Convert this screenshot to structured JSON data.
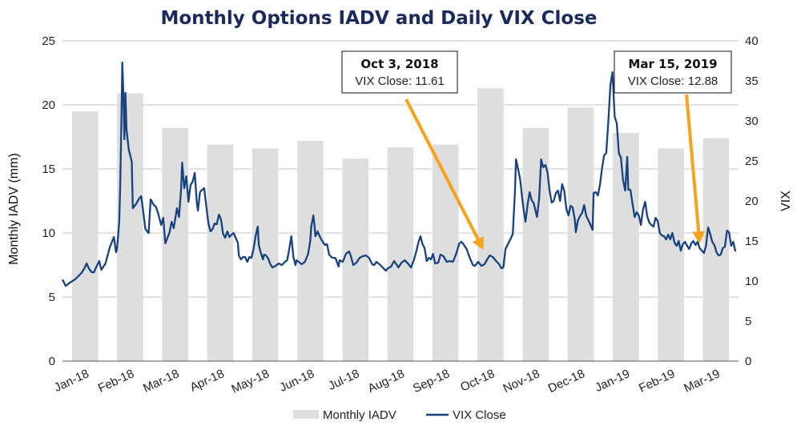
{
  "chart_data": {
    "type": "bar+line",
    "title": "Monthly Options IADV and Daily VIX Close",
    "categories": [
      "Jan-18",
      "Feb-18",
      "Mar-18",
      "Apr-18",
      "May-18",
      "Jun-18",
      "Jul-18",
      "Aug-18",
      "Sep-18",
      "Oct-18",
      "Nov-18",
      "Dec-18",
      "Jan-19",
      "Feb-19",
      "Mar-19"
    ],
    "bar_series": {
      "name": "Monthly IADV",
      "values": [
        19.5,
        20.9,
        18.2,
        16.9,
        16.6,
        17.2,
        15.8,
        16.7,
        16.9,
        21.3,
        18.2,
        19.8,
        17.8,
        16.6,
        17.4
      ]
    },
    "line_series": {
      "name": "VIX Close",
      "points": [
        [
          0.0,
          10.2
        ],
        [
          0.15,
          9.4
        ],
        [
          0.35,
          9.8
        ],
        [
          0.6,
          10.2
        ],
        [
          0.9,
          11.0
        ],
        [
          1.05,
          11.6
        ],
        [
          1.15,
          12.2
        ],
        [
          1.25,
          11.6
        ],
        [
          1.3,
          11.4
        ],
        [
          1.4,
          11.1
        ],
        [
          1.5,
          11.1
        ],
        [
          1.6,
          11.7
        ],
        [
          1.75,
          12.5
        ],
        [
          1.85,
          11.4
        ],
        [
          1.95,
          11.8
        ],
        [
          2.05,
          12.2
        ],
        [
          2.25,
          14.2
        ],
        [
          2.45,
          15.5
        ],
        [
          2.55,
          13.6
        ],
        [
          2.6,
          14.0
        ],
        [
          2.7,
          17.3
        ],
        [
          2.75,
          22.0
        ],
        [
          2.8,
          29.0
        ],
        [
          2.85,
          37.3
        ],
        [
          2.9,
          33.5
        ],
        [
          2.95,
          27.7
        ],
        [
          3.0,
          33.5
        ],
        [
          3.05,
          29.0
        ],
        [
          3.15,
          26.5
        ],
        [
          3.3,
          24.9
        ],
        [
          3.35,
          19.1
        ],
        [
          3.5,
          19.6
        ],
        [
          3.65,
          20.3
        ],
        [
          3.75,
          20.6
        ],
        [
          3.85,
          18.6
        ],
        [
          3.95,
          16.5
        ],
        [
          4.1,
          16.0
        ],
        [
          4.2,
          20.2
        ],
        [
          4.35,
          19.5
        ],
        [
          4.45,
          19.3
        ],
        [
          4.55,
          18.5
        ],
        [
          4.7,
          17.0
        ],
        [
          4.8,
          17.9
        ],
        [
          4.9,
          14.7
        ],
        [
          5.0,
          15.4
        ],
        [
          5.1,
          16.1
        ],
        [
          5.2,
          17.4
        ],
        [
          5.3,
          16.6
        ],
        [
          5.45,
          19.1
        ],
        [
          5.55,
          18.0
        ],
        [
          5.65,
          21.5
        ],
        [
          5.7,
          24.8
        ],
        [
          5.8,
          21.6
        ],
        [
          5.9,
          23.1
        ],
        [
          6.0,
          19.9
        ],
        [
          6.1,
          22.0
        ],
        [
          6.2,
          22.4
        ],
        [
          6.3,
          23.5
        ],
        [
          6.4,
          19.7
        ],
        [
          6.45,
          18.8
        ],
        [
          6.55,
          21.1
        ],
        [
          6.65,
          21.4
        ],
        [
          6.75,
          21.6
        ],
        [
          6.85,
          19.4
        ],
        [
          6.95,
          17.2
        ],
        [
          7.05,
          16.2
        ],
        [
          7.15,
          16.5
        ],
        [
          7.25,
          17.2
        ],
        [
          7.35,
          17.1
        ],
        [
          7.45,
          18.3
        ],
        [
          7.55,
          17.7
        ],
        [
          7.65,
          15.9
        ],
        [
          7.75,
          15.4
        ],
        [
          7.85,
          16.2
        ],
        [
          7.95,
          15.5
        ],
        [
          8.05,
          15.8
        ],
        [
          8.15,
          16.0
        ],
        [
          8.25,
          15.4
        ],
        [
          8.35,
          14.8
        ],
        [
          8.4,
          13.2
        ],
        [
          8.5,
          12.7
        ],
        [
          8.6,
          13.0
        ],
        [
          8.7,
          13.0
        ],
        [
          8.8,
          12.4
        ],
        [
          8.9,
          13.0
        ],
        [
          9.0,
          12.9
        ],
        [
          9.1,
          14.0
        ],
        [
          9.2,
          15.6
        ],
        [
          9.3,
          16.8
        ],
        [
          9.35,
          14.5
        ],
        [
          9.45,
          13.5
        ],
        [
          9.55,
          12.7
        ],
        [
          9.6,
          13.3
        ],
        [
          9.7,
          13.2
        ],
        [
          9.8,
          12.8
        ],
        [
          9.9,
          12.1
        ],
        [
          10.0,
          11.7
        ],
        [
          10.15,
          11.9
        ],
        [
          10.3,
          12.2
        ],
        [
          10.45,
          12.0
        ],
        [
          10.6,
          12.4
        ],
        [
          10.7,
          12.6
        ],
        [
          10.8,
          14.0
        ],
        [
          10.9,
          15.6
        ],
        [
          11.0,
          13.0
        ],
        [
          11.1,
          12.0
        ],
        [
          11.15,
          12.6
        ],
        [
          11.25,
          12.4
        ],
        [
          11.4,
          12.1
        ],
        [
          11.55,
          12.4
        ],
        [
          11.7,
          13.4
        ],
        [
          11.8,
          15.0
        ],
        [
          11.85,
          16.8
        ],
        [
          11.95,
          18.2
        ],
        [
          12.0,
          17.1
        ],
        [
          12.05,
          15.6
        ],
        [
          12.15,
          16.2
        ],
        [
          12.25,
          15.6
        ],
        [
          12.35,
          15.1
        ],
        [
          12.5,
          14.5
        ],
        [
          12.6,
          14.6
        ],
        [
          12.7,
          13.3
        ],
        [
          12.85,
          12.9
        ],
        [
          13.0,
          12.9
        ],
        [
          13.15,
          11.8
        ],
        [
          13.2,
          12.6
        ],
        [
          13.35,
          12.4
        ],
        [
          13.5,
          13.4
        ],
        [
          13.65,
          13.7
        ],
        [
          13.75,
          13.0
        ],
        [
          13.85,
          12.0
        ],
        [
          14.0,
          12.3
        ],
        [
          14.15,
          12.9
        ],
        [
          14.3,
          13.1
        ],
        [
          14.45,
          13.2
        ],
        [
          14.6,
          12.9
        ],
        [
          14.75,
          12.1
        ],
        [
          14.85,
          12.0
        ],
        [
          14.95,
          12.4
        ],
        [
          15.1,
          12.1
        ],
        [
          15.25,
          11.7
        ],
        [
          15.4,
          11.3
        ],
        [
          15.5,
          11.6
        ],
        [
          15.65,
          11.8
        ],
        [
          15.8,
          12.5
        ],
        [
          15.9,
          12.1
        ],
        [
          16.0,
          11.7
        ],
        [
          16.15,
          12.3
        ],
        [
          16.3,
          12.6
        ],
        [
          16.45,
          12.2
        ],
        [
          16.6,
          11.7
        ],
        [
          16.75,
          12.7
        ],
        [
          16.85,
          13.7
        ],
        [
          16.95,
          14.8
        ],
        [
          17.05,
          15.6
        ],
        [
          17.15,
          14.6
        ],
        [
          17.25,
          14.1
        ],
        [
          17.35,
          12.5
        ],
        [
          17.45,
          12.9
        ],
        [
          17.55,
          12.7
        ],
        [
          17.65,
          13.4
        ],
        [
          17.75,
          12.2
        ],
        [
          17.9,
          12.3
        ],
        [
          18.0,
          13.3
        ],
        [
          18.15,
          13.1
        ],
        [
          18.3,
          12.4
        ],
        [
          18.45,
          12.5
        ],
        [
          18.6,
          12.4
        ],
        [
          18.75,
          13.4
        ],
        [
          18.9,
          14.7
        ],
        [
          19.0,
          14.9
        ],
        [
          19.1,
          14.6
        ],
        [
          19.25,
          14.0
        ],
        [
          19.4,
          12.9
        ],
        [
          19.55,
          12.0
        ],
        [
          19.65,
          11.9
        ],
        [
          19.8,
          12.4
        ],
        [
          19.95,
          11.9
        ],
        [
          20.1,
          12.1
        ],
        [
          20.25,
          12.8
        ],
        [
          20.35,
          13.2
        ],
        [
          20.5,
          13.0
        ],
        [
          20.65,
          12.5
        ],
        [
          20.8,
          12.1
        ],
        [
          20.9,
          11.6
        ],
        [
          21.0,
          11.7
        ],
        [
          21.1,
          14.0
        ],
        [
          21.25,
          14.8
        ],
        [
          21.35,
          15.3
        ],
        [
          21.45,
          15.9
        ],
        [
          21.55,
          21.2
        ],
        [
          21.6,
          25.2
        ],
        [
          21.7,
          24.0
        ],
        [
          21.8,
          22.7
        ],
        [
          21.9,
          20.3
        ],
        [
          22.0,
          18.3
        ],
        [
          22.05,
          17.4
        ],
        [
          22.15,
          19.5
        ],
        [
          22.25,
          21.1
        ],
        [
          22.35,
          20.1
        ],
        [
          22.45,
          19.7
        ],
        [
          22.6,
          18.0
        ],
        [
          22.7,
          20.2
        ],
        [
          22.8,
          25.2
        ],
        [
          22.9,
          24.2
        ],
        [
          23.0,
          24.5
        ],
        [
          23.1,
          23.6
        ],
        [
          23.2,
          21.3
        ],
        [
          23.3,
          19.8
        ],
        [
          23.4,
          20.0
        ],
        [
          23.5,
          21.0
        ],
        [
          23.6,
          21.3
        ],
        [
          23.7,
          20.0
        ],
        [
          23.8,
          22.1
        ],
        [
          23.9,
          21.3
        ],
        [
          24.0,
          19.0
        ],
        [
          24.1,
          18.2
        ],
        [
          24.2,
          19.4
        ],
        [
          24.3,
          19.2
        ],
        [
          24.4,
          17.7
        ],
        [
          24.45,
          16.1
        ],
        [
          24.55,
          17.6
        ],
        [
          24.65,
          18.1
        ],
        [
          24.75,
          18.5
        ],
        [
          24.85,
          19.5
        ],
        [
          24.95,
          18.1
        ],
        [
          25.05,
          17.6
        ],
        [
          25.15,
          17.0
        ],
        [
          25.25,
          16.4
        ],
        [
          25.3,
          21.0
        ],
        [
          25.4,
          21.1
        ],
        [
          25.5,
          20.7
        ],
        [
          25.6,
          22.0
        ],
        [
          25.7,
          24.1
        ],
        [
          25.8,
          25.7
        ],
        [
          25.9,
          26.0
        ],
        [
          26.0,
          30.0
        ],
        [
          26.1,
          34.5
        ],
        [
          26.2,
          36.1
        ],
        [
          26.3,
          30.5
        ],
        [
          26.4,
          29.7
        ],
        [
          26.5,
          26.0
        ],
        [
          26.6,
          25.4
        ],
        [
          26.7,
          22.6
        ],
        [
          26.8,
          21.3
        ],
        [
          26.9,
          25.5
        ],
        [
          26.95,
          21.4
        ],
        [
          27.05,
          21.4
        ],
        [
          27.15,
          19.7
        ],
        [
          27.25,
          18.0
        ],
        [
          27.35,
          18.6
        ],
        [
          27.45,
          18.2
        ],
        [
          27.55,
          17.0
        ],
        [
          27.65,
          18.9
        ],
        [
          27.75,
          19.9
        ],
        [
          27.85,
          18.1
        ],
        [
          27.95,
          17.3
        ],
        [
          28.05,
          17.0
        ],
        [
          28.15,
          16.8
        ],
        [
          28.25,
          17.9
        ],
        [
          28.35,
          17.5
        ],
        [
          28.45,
          16.0
        ],
        [
          28.55,
          15.7
        ],
        [
          28.65,
          15.6
        ],
        [
          28.75,
          15.2
        ],
        [
          28.85,
          15.8
        ],
        [
          28.95,
          15.2
        ],
        [
          29.05,
          16.0
        ],
        [
          29.15,
          14.8
        ],
        [
          29.25,
          14.4
        ],
        [
          29.35,
          15.0
        ],
        [
          29.45,
          13.8
        ],
        [
          29.55,
          14.6
        ],
        [
          29.65,
          14.9
        ],
        [
          29.75,
          14.4
        ],
        [
          29.85,
          14.0
        ],
        [
          29.95,
          14.7
        ],
        [
          30.05,
          15.0
        ],
        [
          30.15,
          14.5
        ],
        [
          30.25,
          14.9
        ],
        [
          30.35,
          14.1
        ],
        [
          30.45,
          13.8
        ],
        [
          30.55,
          13.5
        ],
        [
          30.65,
          14.4
        ],
        [
          30.75,
          16.7
        ],
        [
          30.85,
          15.9
        ],
        [
          30.95,
          14.9
        ],
        [
          31.05,
          14.5
        ],
        [
          31.15,
          13.6
        ],
        [
          31.25,
          13.2
        ],
        [
          31.35,
          13.3
        ],
        [
          31.45,
          14.1
        ],
        [
          31.55,
          14.3
        ],
        [
          31.65,
          16.3
        ],
        [
          31.75,
          16.1
        ],
        [
          31.85,
          14.4
        ],
        [
          31.95,
          14.9
        ],
        [
          32.05,
          13.7
        ]
      ]
    },
    "ylabel_left": "Monthly IADV (mm)",
    "ylabel_right": "VIX",
    "ylim_left": [
      0,
      25
    ],
    "ylim_right": [
      0,
      40
    ],
    "yticks_left": [
      "0",
      "5",
      "10",
      "15",
      "20",
      "25"
    ],
    "yticks_right": [
      "0",
      "5",
      "10",
      "15",
      "20",
      "25",
      "30",
      "35",
      "40"
    ],
    "grid": true,
    "legend_position": "bottom-center",
    "annotations": [
      {
        "title": "Oct 3, 2018",
        "text": "VIX Close: 11.61",
        "date_pos": 20.05,
        "value": 13.3
      },
      {
        "title": "Mar 15, 2019",
        "text": "VIX Close: 12.88",
        "date_pos": 30.35,
        "value": 14.1
      }
    ],
    "colors": {
      "bar": "#dedede",
      "line": "#17427f",
      "arrow": "#f7a21c",
      "title": "#1b2a5c"
    }
  }
}
